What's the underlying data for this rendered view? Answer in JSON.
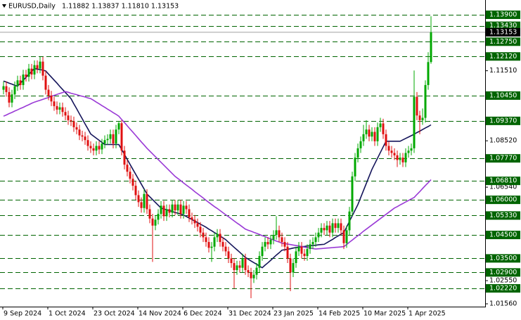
{
  "chart_data": {
    "type": "candlestick",
    "title": "EURUSD,Daily",
    "subtitle": "1.11882 1.13837 1.11810 1.13153",
    "up_color": "#00a800",
    "down_color": "#e01010",
    "level_color": "#006400",
    "ylim": [
      1.0141,
      1.1453
    ],
    "yticks": [
      {
        "value": 1.1151,
        "label": "1.11510"
      },
      {
        "value": 1.0852,
        "label": "1.08520"
      },
      {
        "value": 1.0654,
        "label": "1.06540"
      },
      {
        "value": 1.0255,
        "label": "1.02550"
      },
      {
        "value": 1.0156,
        "label": "1.01560"
      }
    ],
    "levels": [
      {
        "value": 1.139,
        "label": "1.13900"
      },
      {
        "value": 1.1343,
        "label": "1.13430"
      },
      {
        "value": 1.1275,
        "label": "1.12750"
      },
      {
        "value": 1.1212,
        "label": "1.12120"
      },
      {
        "value": 1.1045,
        "label": "1.10450"
      },
      {
        "value": 1.0937,
        "label": "1.09370"
      },
      {
        "value": 1.0777,
        "label": "1.07770"
      },
      {
        "value": 1.0681,
        "label": "1.06810"
      },
      {
        "value": 1.06,
        "label": "1.06000"
      },
      {
        "value": 1.0533,
        "label": "1.05330"
      },
      {
        "value": 1.045,
        "label": "1.04500"
      },
      {
        "value": 1.035,
        "label": "1.03500"
      },
      {
        "value": 1.029,
        "label": "1.02900"
      },
      {
        "value": 1.0222,
        "label": "1.02220"
      }
    ],
    "last_price": {
      "value": 1.13153,
      "label": "1.13153"
    },
    "categories": [
      "9 Sep 2024",
      null,
      null,
      null,
      null,
      null,
      null,
      null,
      null,
      null,
      null,
      null,
      null,
      null,
      null,
      null,
      "1 Oct 2024",
      null,
      null,
      null,
      null,
      null,
      null,
      null,
      null,
      null,
      null,
      null,
      null,
      null,
      null,
      null,
      "23 Oct 2024",
      null,
      null,
      null,
      null,
      null,
      null,
      null,
      null,
      null,
      null,
      null,
      null,
      null,
      null,
      null,
      "14 Nov 2024",
      null,
      null,
      null,
      null,
      null,
      null,
      null,
      null,
      null,
      null,
      null,
      null,
      null,
      null,
      null,
      "6 Dec 2024",
      null,
      null,
      null,
      null,
      null,
      null,
      null,
      null,
      null,
      null,
      null,
      null,
      null,
      null,
      null,
      "31 Dec 2024",
      null,
      null,
      null,
      null,
      null,
      null,
      null,
      null,
      null,
      null,
      null,
      null,
      null,
      null,
      null,
      "23 Jan 2025",
      null,
      null,
      null,
      null,
      null,
      null,
      null,
      null,
      null,
      null,
      null,
      null,
      null,
      null,
      null,
      "14 Feb 2025",
      null,
      null,
      null,
      null,
      null,
      null,
      null,
      null,
      null,
      null,
      null,
      null,
      null,
      null,
      null,
      "10 Mar 2025",
      null,
      null,
      null,
      null,
      null,
      null,
      null,
      null,
      null,
      null,
      null,
      null,
      null,
      null,
      null,
      "1 Apr 2025",
      null,
      null,
      null,
      null,
      null,
      null,
      null,
      null
    ],
    "open": [
      1.107,
      1.1085,
      1.106,
      1.1015,
      1.105,
      1.1085,
      1.111,
      1.109,
      1.1135,
      1.1125,
      1.116,
      1.1135,
      1.1175,
      1.116,
      1.119,
      1.113,
      1.107,
      1.1045,
      1.102,
      1.1,
      1.0985,
      1.0995,
      1.0975,
      1.096,
      1.094,
      1.0935,
      1.091,
      1.09,
      1.0875,
      1.087,
      1.0855,
      1.083,
      1.082,
      1.081,
      1.083,
      1.0815,
      1.084,
      1.0855,
      1.086,
      1.088,
      1.084,
      1.09,
      1.0927,
      1.081,
      1.075,
      1.072,
      1.069,
      1.066,
      1.062,
      1.059,
      1.0565,
      1.0625,
      1.056,
      1.052,
      1.049,
      1.0515,
      1.054,
      1.0575,
      1.053,
      1.056,
      1.0545,
      1.058,
      1.0555,
      1.058,
      1.054,
      1.0575,
      1.056,
      1.0525,
      1.0515,
      1.05,
      1.0485,
      1.046,
      1.044,
      1.042,
      1.0395,
      1.04,
      1.044,
      1.0455,
      1.042,
      1.04,
      1.038,
      1.035,
      1.033,
      1.03,
      1.032,
      1.031,
      1.035,
      1.03,
      1.029,
      1.0265,
      1.028,
      1.031,
      1.036,
      1.04,
      1.042,
      1.041,
      1.043,
      1.045,
      1.047,
      1.044,
      1.042,
      1.04,
      1.035,
      1.029,
      1.033,
      1.038,
      1.04,
      1.037,
      1.036,
      1.039,
      1.041,
      1.042,
      1.044,
      1.046,
      1.048,
      1.047,
      1.049,
      1.046,
      1.05,
      1.048,
      1.05,
      1.047,
      1.0415,
      1.047,
      1.055,
      1.07,
      1.078,
      1.082,
      1.085,
      1.088,
      1.09,
      1.087,
      1.089,
      1.085,
      1.091,
      1.0926,
      1.088,
      1.083,
      1.081,
      1.08,
      1.079,
      1.077,
      1.078,
      1.076,
      1.08,
      1.081,
      1.082,
      1.104,
      1.096,
      1.094,
      1.095,
      1.109,
      1.11882
    ],
    "high": [
      1.1105,
      1.1105,
      1.108,
      1.107,
      1.1105,
      1.113,
      1.113,
      1.1155,
      1.1155,
      1.118,
      1.118,
      1.1195,
      1.1195,
      1.121,
      1.121,
      1.115,
      1.109,
      1.1065,
      1.104,
      1.102,
      1.1015,
      1.1015,
      1.0995,
      1.098,
      1.096,
      1.0955,
      1.093,
      1.092,
      1.0895,
      1.089,
      1.0875,
      1.085,
      1.084,
      1.085,
      1.085,
      1.086,
      1.0875,
      1.088,
      1.09,
      1.09,
      1.092,
      1.0937,
      1.094,
      1.083,
      1.077,
      1.074,
      1.071,
      1.068,
      1.064,
      1.061,
      1.0645,
      1.0645,
      1.058,
      1.054,
      1.0535,
      1.056,
      1.0595,
      1.0595,
      1.058,
      1.058,
      1.06,
      1.06,
      1.06,
      1.06,
      1.0595,
      1.0595,
      1.058,
      1.0545,
      1.0535,
      1.052,
      1.0505,
      1.048,
      1.046,
      1.044,
      1.042,
      1.046,
      1.0475,
      1.0475,
      1.044,
      1.042,
      1.04,
      1.037,
      1.035,
      1.034,
      1.034,
      1.037,
      1.037,
      1.032,
      1.031,
      1.03,
      1.033,
      1.038,
      1.042,
      1.044,
      1.044,
      1.045,
      1.047,
      1.053,
      1.049,
      1.046,
      1.044,
      1.042,
      1.037,
      1.035,
      1.04,
      1.042,
      1.042,
      1.039,
      1.041,
      1.043,
      1.044,
      1.046,
      1.048,
      1.05,
      1.05,
      1.051,
      1.051,
      1.052,
      1.052,
      1.052,
      1.052,
      1.049,
      1.049,
      1.057,
      1.072,
      1.08,
      1.084,
      1.087,
      1.092,
      1.094,
      1.092,
      1.091,
      1.091,
      1.093,
      1.095,
      1.0946,
      1.09,
      1.085,
      1.083,
      1.082,
      1.081,
      1.08,
      1.08,
      1.082,
      1.083,
      1.084,
      1.1152,
      1.106,
      1.098,
      1.099,
      1.111,
      1.123,
      1.13837
    ],
    "low": [
      1.105,
      1.104,
      1.0995,
      1.0995,
      1.103,
      1.1065,
      1.107,
      1.107,
      1.1105,
      1.1105,
      1.1115,
      1.1115,
      1.114,
      1.114,
      1.111,
      1.105,
      1.1025,
      1.1,
      1.098,
      1.0965,
      1.0965,
      1.0955,
      1.094,
      1.092,
      1.0915,
      1.089,
      1.088,
      1.0855,
      1.085,
      1.0835,
      1.081,
      1.08,
      1.079,
      1.079,
      1.0795,
      1.0795,
      1.082,
      1.0835,
      1.084,
      1.082,
      1.082,
      1.088,
      1.079,
      1.073,
      1.07,
      1.067,
      1.064,
      1.06,
      1.057,
      1.0545,
      1.0545,
      1.054,
      1.05,
      1.0335,
      1.047,
      1.0495,
      1.052,
      1.051,
      1.051,
      1.0525,
      1.0525,
      1.0535,
      1.0535,
      1.052,
      1.052,
      1.054,
      1.0505,
      1.0495,
      1.048,
      1.0465,
      1.044,
      1.042,
      1.04,
      1.0375,
      1.0335,
      1.038,
      1.042,
      1.04,
      1.038,
      1.036,
      1.033,
      1.031,
      1.0222,
      1.028,
      1.029,
      1.029,
      1.028,
      1.027,
      1.018,
      1.0245,
      1.026,
      1.029,
      1.034,
      1.038,
      1.039,
      1.039,
      1.041,
      1.043,
      1.042,
      1.04,
      1.038,
      1.033,
      1.021,
      1.027,
      1.031,
      1.036,
      1.035,
      1.034,
      1.034,
      1.037,
      1.039,
      1.04,
      1.042,
      1.044,
      1.045,
      1.045,
      1.044,
      1.044,
      1.046,
      1.046,
      1.045,
      1.039,
      1.0395,
      1.045,
      1.053,
      1.068,
      1.076,
      1.08,
      1.083,
      1.086,
      1.085,
      1.085,
      1.083,
      1.083,
      1.089,
      1.086,
      1.081,
      1.079,
      1.078,
      1.077,
      1.074,
      1.075,
      1.074,
      1.074,
      1.078,
      1.079,
      1.08,
      1.094,
      1.088,
      1.092,
      1.093,
      1.107,
      1.1181
    ],
    "close": [
      1.1085,
      1.106,
      1.1015,
      1.105,
      1.1085,
      1.111,
      1.109,
      1.1135,
      1.1125,
      1.116,
      1.1135,
      1.1175,
      1.116,
      1.119,
      1.113,
      1.107,
      1.1045,
      1.102,
      1.1,
      1.0985,
      1.0995,
      1.0975,
      1.096,
      1.094,
      1.0935,
      1.091,
      1.09,
      1.0875,
      1.087,
      1.0855,
      1.083,
      1.082,
      1.081,
      1.083,
      1.0815,
      1.084,
      1.0855,
      1.086,
      1.088,
      1.084,
      1.09,
      1.0927,
      1.081,
      1.075,
      1.072,
      1.069,
      1.066,
      1.062,
      1.059,
      1.0565,
      1.0625,
      1.056,
      1.052,
      1.049,
      1.0515,
      1.054,
      1.0575,
      1.053,
      1.056,
      1.0545,
      1.058,
      1.0555,
      1.058,
      1.054,
      1.0575,
      1.056,
      1.0525,
      1.0515,
      1.05,
      1.0485,
      1.046,
      1.044,
      1.042,
      1.0395,
      1.04,
      1.044,
      1.0455,
      1.042,
      1.04,
      1.038,
      1.035,
      1.033,
      1.03,
      1.032,
      1.031,
      1.035,
      1.03,
      1.029,
      1.0265,
      1.028,
      1.031,
      1.036,
      1.04,
      1.042,
      1.041,
      1.043,
      1.045,
      1.047,
      1.044,
      1.042,
      1.04,
      1.035,
      1.029,
      1.033,
      1.038,
      1.04,
      1.037,
      1.036,
      1.039,
      1.041,
      1.042,
      1.044,
      1.046,
      1.048,
      1.047,
      1.049,
      1.046,
      1.05,
      1.048,
      1.05,
      1.047,
      1.0415,
      1.047,
      1.055,
      1.07,
      1.078,
      1.082,
      1.085,
      1.088,
      1.09,
      1.087,
      1.089,
      1.085,
      1.091,
      1.0926,
      1.088,
      1.083,
      1.081,
      1.08,
      1.079,
      1.077,
      1.078,
      1.076,
      1.08,
      1.081,
      1.082,
      1.104,
      1.096,
      1.094,
      1.095,
      1.109,
      1.1188,
      1.13153
    ],
    "series": [
      {
        "color": "#14145a",
        "values": [
          1.1107,
          1.1103,
          1.1098,
          1.1094,
          1.1089,
          1.1085,
          1.1098,
          1.111,
          1.1123,
          1.1136,
          1.1148,
          1.1161,
          1.1158,
          1.1156,
          1.1153,
          1.115,
          1.1137,
          1.1124,
          1.1111,
          1.1098,
          1.1084,
          1.1071,
          1.1058,
          1.1045,
          1.1032,
          1.101,
          1.0989,
          1.0967,
          1.0946,
          1.0924,
          1.0903,
          1.0881,
          1.0872,
          1.0863,
          1.0854,
          1.0845,
          1.0836,
          1.0836,
          1.0836,
          1.0836,
          1.0836,
          1.0836,
          1.0815,
          1.0794,
          1.0772,
          1.0751,
          1.073,
          1.0709,
          1.0688,
          1.0667,
          1.0646,
          1.0625,
          1.0613,
          1.0601,
          1.0589,
          1.0577,
          1.0565,
          1.0561,
          1.0558,
          1.0554,
          1.055,
          1.0546,
          1.0543,
          1.0539,
          1.0535,
          1.0529,
          1.0522,
          1.0516,
          1.0509,
          1.0503,
          1.0496,
          1.049,
          1.0483,
          1.0475,
          1.0468,
          1.046,
          1.0453,
          1.0445,
          1.0438,
          1.043,
          1.0419,
          1.0408,
          1.0397,
          1.0387,
          1.0376,
          1.0365,
          1.0354,
          1.0347,
          1.0339,
          1.0332,
          1.0325,
          1.0317,
          1.031,
          1.0321,
          1.0331,
          1.0342,
          1.0353,
          1.0364,
          1.0374,
          1.0385,
          1.0387,
          1.0389,
          1.0391,
          1.0394,
          1.0396,
          1.0398,
          1.04,
          1.0401,
          1.0403,
          1.0404,
          1.0405,
          1.0406,
          1.0408,
          1.0409,
          1.041,
          1.0417,
          1.0424,
          1.0431,
          1.0439,
          1.0446,
          1.0453,
          1.046,
          1.0484,
          1.0508,
          1.0532,
          1.0556,
          1.058,
          1.061,
          1.064,
          1.067,
          1.07,
          1.073,
          1.0754,
          1.0778,
          1.0802,
          1.0826,
          1.085,
          1.085,
          1.085,
          1.085,
          1.085,
          1.085,
          1.0856,
          1.0862,
          1.0868,
          1.0874,
          1.088,
          1.0887,
          1.0893,
          1.09,
          1.0907,
          1.0913,
          1.092
        ]
      },
      {
        "color": "#9a3ad6",
        "values": [
          1.0957,
          1.0962,
          1.0968,
          1.0973,
          1.0979,
          1.0984,
          1.099,
          1.0995,
          1.1001,
          1.1006,
          1.1012,
          1.1017,
          1.1021,
          1.1025,
          1.1029,
          1.1033,
          1.1037,
          1.1042,
          1.1046,
          1.105,
          1.1054,
          1.1058,
          1.1062,
          1.1059,
          1.1055,
          1.1052,
          1.1049,
          1.1045,
          1.1042,
          1.1039,
          1.1035,
          1.1032,
          1.1025,
          1.1017,
          1.101,
          1.1002,
          1.0995,
          1.0987,
          1.098,
          1.0972,
          1.0965,
          1.0957,
          1.0943,
          1.093,
          1.0916,
          1.0902,
          1.0889,
          1.0875,
          1.0861,
          1.0847,
          1.0834,
          1.082,
          1.0808,
          1.0796,
          1.0784,
          1.0772,
          1.076,
          1.0748,
          1.0736,
          1.0724,
          1.0712,
          1.07,
          1.0691,
          1.0682,
          1.0672,
          1.0663,
          1.0654,
          1.0645,
          1.0635,
          1.0626,
          1.0617,
          1.0608,
          1.0598,
          1.0589,
          1.058,
          1.0571,
          1.0563,
          1.0554,
          1.0545,
          1.0536,
          1.0528,
          1.0519,
          1.051,
          1.0501,
          1.0493,
          1.0484,
          1.0475,
          1.047,
          1.0466,
          1.0461,
          1.0457,
          1.0452,
          1.0447,
          1.0443,
          1.0438,
          1.0433,
          1.0429,
          1.0424,
          1.042,
          1.0415,
          1.0413,
          1.0411,
          1.0409,
          1.0407,
          1.0405,
          1.0403,
          1.04,
          1.0398,
          1.0396,
          1.0394,
          1.0392,
          1.039,
          1.0391,
          1.0392,
          1.0393,
          1.0394,
          1.0395,
          1.0396,
          1.0397,
          1.0398,
          1.0399,
          1.04,
          1.0409,
          1.0419,
          1.0428,
          1.0438,
          1.0447,
          1.0456,
          1.0466,
          1.0475,
          1.0484,
          1.0493,
          1.0502,
          1.0511,
          1.052,
          1.0529,
          1.0538,
          1.0547,
          1.0556,
          1.0565,
          1.0571,
          1.0578,
          1.0584,
          1.0591,
          1.0597,
          1.0604,
          1.061,
          1.0623,
          1.0635,
          1.0648,
          1.0661,
          1.0673,
          1.0686
        ]
      }
    ]
  }
}
